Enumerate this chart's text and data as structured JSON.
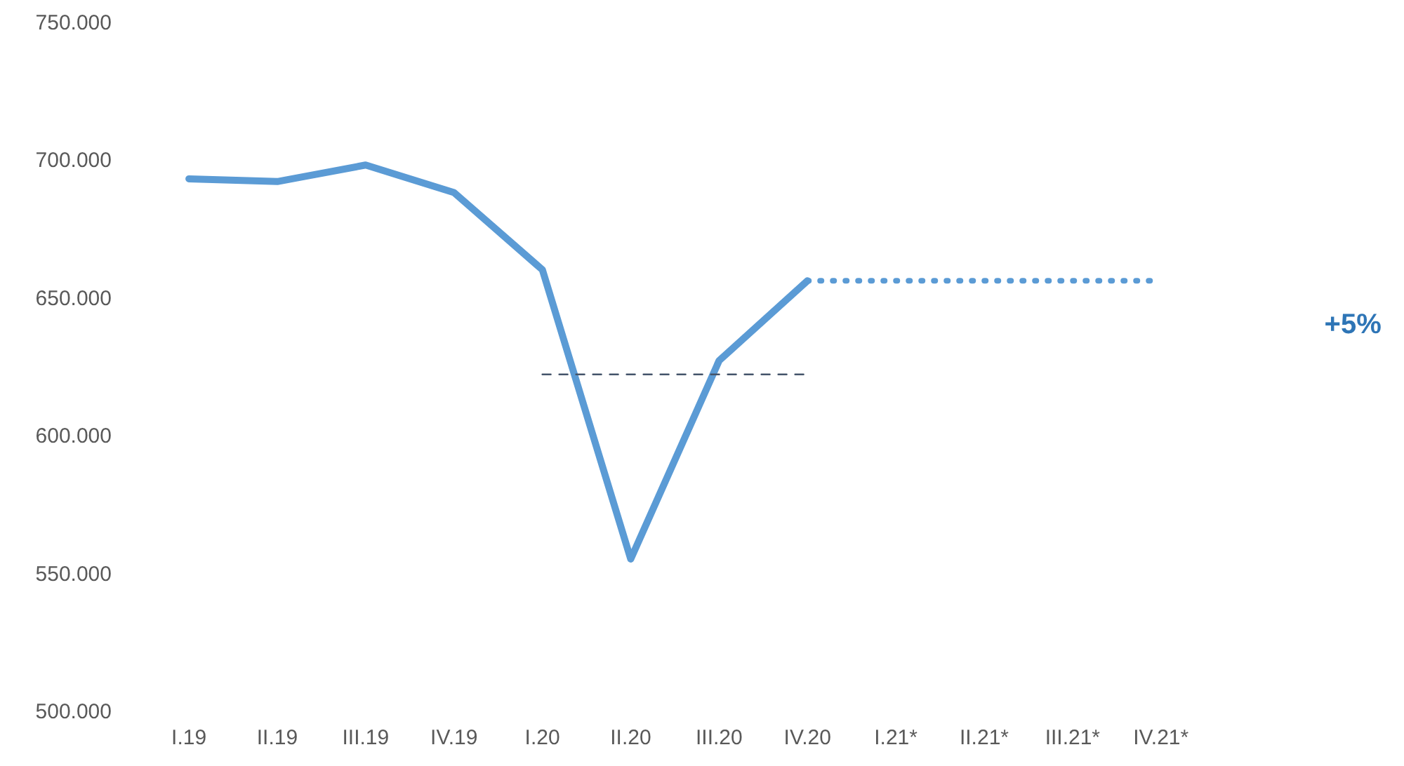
{
  "chart_data": {
    "type": "line",
    "categories": [
      "I.19",
      "II.19",
      "III.19",
      "IV.19",
      "I.20",
      "II.20",
      "III.20",
      "IV.20",
      "I.21*",
      "II.21*",
      "III.21*",
      "IV.21*"
    ],
    "series": [
      {
        "color": "#5b9bd5",
        "values": [
          693,
          692,
          698,
          688,
          660,
          555,
          627,
          656,
          null,
          null,
          null,
          null
        ],
        "line_style": "solid"
      },
      {
        "color": "#5b9bd5",
        "values": [
          null,
          null,
          null,
          null,
          null,
          null,
          null,
          656,
          656,
          656,
          656,
          656
        ],
        "line_style": "dotted"
      },
      {
        "color": "#44546a",
        "values": [
          null,
          null,
          null,
          null,
          622,
          622,
          622,
          622,
          null,
          null,
          null,
          null
        ],
        "line_style": "dashed"
      }
    ],
    "ylim": [
      500,
      750
    ],
    "yticks": [
      {
        "value": 500,
        "label": "500.000"
      },
      {
        "value": 550,
        "label": "550.000"
      },
      {
        "value": 600,
        "label": "600.000"
      },
      {
        "value": 650,
        "label": "650.000"
      },
      {
        "value": 700,
        "label": "700.000"
      },
      {
        "value": 750,
        "label": "750.000"
      }
    ],
    "grid": false,
    "annotations": [
      "+5%"
    ]
  }
}
